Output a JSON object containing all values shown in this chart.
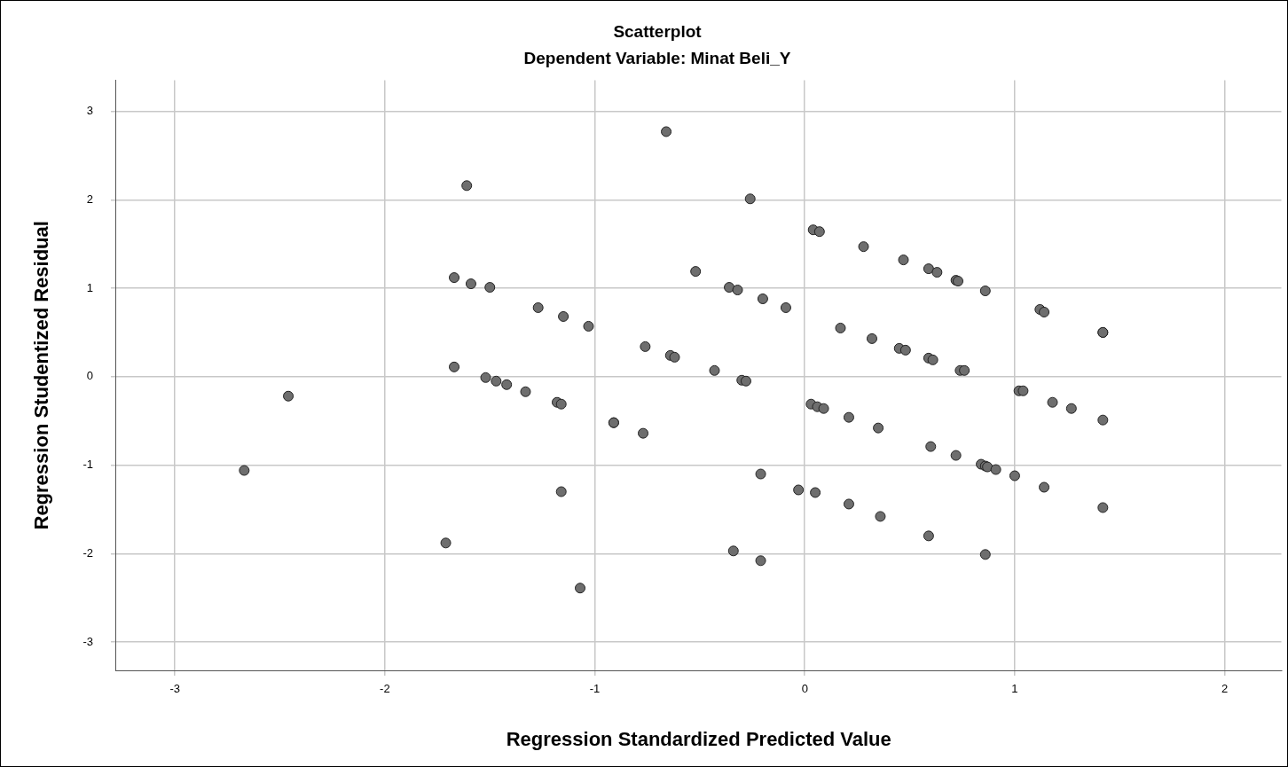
{
  "chart_data": {
    "type": "scatter",
    "title": "Scatterplot",
    "subtitle": "Dependent Variable: Minat Beli_Y",
    "xlabel": "Regression Standardized Predicted Value",
    "ylabel": "Regression Studentized Residual",
    "x": [
      -2.67,
      -2.46,
      -1.71,
      -1.67,
      -1.67,
      -1.61,
      -1.59,
      -1.52,
      -1.5,
      -1.47,
      -1.42,
      -1.33,
      -1.27,
      -1.18,
      -1.16,
      -1.16,
      -1.15,
      -1.07,
      -1.03,
      -0.91,
      -0.91,
      -0.77,
      -0.76,
      -0.66,
      -0.64,
      -0.62,
      -0.52,
      -0.43,
      -0.36,
      -0.34,
      -0.32,
      -0.3,
      -0.28,
      -0.26,
      -0.21,
      -0.21,
      -0.2,
      -0.09,
      -0.03,
      0.03,
      0.04,
      0.05,
      0.06,
      0.07,
      0.09,
      0.17,
      0.21,
      0.21,
      0.28,
      0.32,
      0.35,
      0.36,
      0.45,
      0.47,
      0.48,
      0.59,
      0.59,
      0.59,
      0.6,
      0.61,
      0.63,
      0.72,
      0.72,
      0.73,
      0.74,
      0.76,
      0.84,
      0.86,
      0.86,
      0.86,
      0.87,
      0.91,
      1.0,
      1.02,
      1.04,
      1.12,
      1.14,
      1.14,
      1.18,
      1.27,
      1.42,
      1.42,
      1.42,
      1.42
    ],
    "values": [
      -1.06,
      -0.22,
      -1.88,
      1.12,
      0.11,
      2.16,
      1.05,
      -0.01,
      1.01,
      -0.05,
      -0.09,
      -0.17,
      0.78,
      -0.29,
      -0.31,
      -1.3,
      0.68,
      -2.39,
      0.57,
      -0.52,
      -0.52,
      -0.64,
      0.34,
      2.77,
      0.24,
      0.22,
      1.19,
      0.07,
      1.01,
      -1.97,
      0.98,
      -0.04,
      -0.05,
      2.01,
      -2.08,
      -1.1,
      0.88,
      0.78,
      -1.28,
      -0.31,
      1.66,
      -1.31,
      -0.34,
      1.64,
      -0.36,
      0.55,
      -0.46,
      -1.44,
      1.47,
      0.43,
      -0.58,
      -1.58,
      0.32,
      1.32,
      0.3,
      1.22,
      0.21,
      -1.8,
      -0.79,
      0.19,
      1.18,
      1.09,
      -0.89,
      1.08,
      0.07,
      0.07,
      -0.99,
      0.97,
      -1.01,
      -2.01,
      -1.02,
      -1.05,
      -1.12,
      -0.16,
      -0.16,
      0.76,
      0.73,
      -1.25,
      -0.29,
      -0.36,
      0.5,
      0.5,
      -0.49,
      -1.48
    ],
    "color": "#6e6e6e",
    "marker": "circle",
    "grid": true,
    "xlim": [
      -3.28,
      2.27
    ],
    "xticks": [
      -3,
      -2,
      -1,
      0,
      1,
      2
    ],
    "ylim": [
      -3.32,
      3.35
    ],
    "yticks": [
      -3,
      -2,
      -1,
      0,
      1,
      2,
      3
    ]
  }
}
